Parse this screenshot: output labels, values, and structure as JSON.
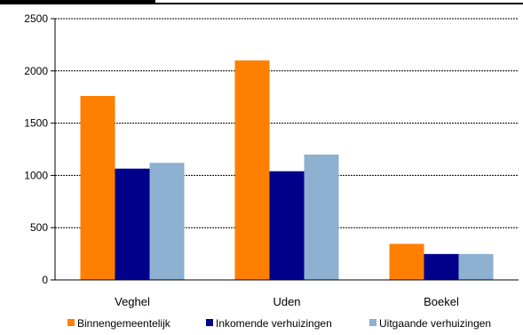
{
  "chart_data": {
    "type": "bar",
    "title": "",
    "xlabel": "",
    "ylabel": "",
    "categories": [
      "Veghel",
      "Uden",
      "Boekel"
    ],
    "series": [
      {
        "name": "Binnengemeentelijk",
        "color": "#FF7F00",
        "values": [
          1760,
          2100,
          345
        ]
      },
      {
        "name": "Inkomende verhuizingen",
        "color": "#00008B",
        "values": [
          1065,
          1040,
          248
        ]
      },
      {
        "name": "Uitgaande verhuizingen",
        "color": "#8EB0D1",
        "values": [
          1120,
          1200,
          248
        ]
      }
    ],
    "ylim": [
      0,
      2500
    ],
    "yticks": [
      0,
      500,
      1000,
      1500,
      2000,
      2500
    ],
    "grid": true,
    "legend_position": "bottom"
  }
}
